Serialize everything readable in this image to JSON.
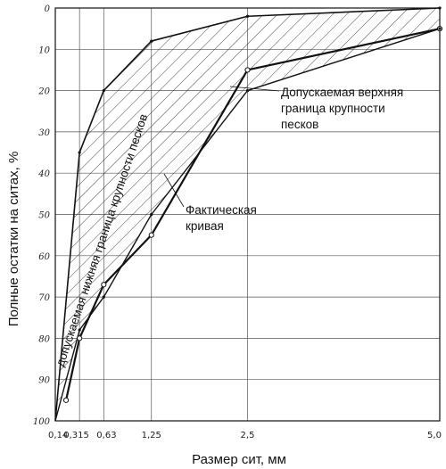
{
  "chart_data": {
    "type": "line",
    "xlabel": "Размер сит, мм",
    "ylabel": "Полные остатки на ситах, %",
    "x_ticks": [
      "0,14",
      "0,315",
      "0,63",
      "1,25",
      "2,5",
      "5,0"
    ],
    "y_ticks": [
      "0",
      "10",
      "20",
      "30",
      "40",
      "50",
      "60",
      "70",
      "80",
      "90",
      "100"
    ],
    "ylim": [
      0,
      100
    ],
    "y_inverted": true,
    "grid": true,
    "x_positions": [
      0,
      0.315,
      0.63,
      1.25,
      2.5,
      5.0
    ],
    "series": [
      {
        "name": "Допускаемая нижняя граница крупности песков",
        "x": [
          0,
          0.315,
          0.63,
          1.25,
          2.5,
          5.0
        ],
        "y": [
          100,
          35,
          20,
          8,
          2,
          0
        ]
      },
      {
        "name": "Допускаемая верхняя граница крупности песков",
        "x": [
          0,
          0.315,
          0.63,
          1.25,
          2.5,
          5.0
        ],
        "y": [
          100,
          78,
          70,
          50,
          20,
          5
        ]
      },
      {
        "name": "Фактическая кривая",
        "x": [
          0.14,
          0.315,
          0.63,
          1.25,
          2.5,
          5.0
        ],
        "y": [
          95,
          80,
          67,
          55,
          15,
          5
        ]
      }
    ],
    "annotations": {
      "lower": "допускаемая нижняя граница крупности песков",
      "upper": [
        "Допускаемая верхняя",
        "граница крупности",
        "песков"
      ],
      "actual": [
        "Фактическая",
        "кривая"
      ]
    }
  }
}
